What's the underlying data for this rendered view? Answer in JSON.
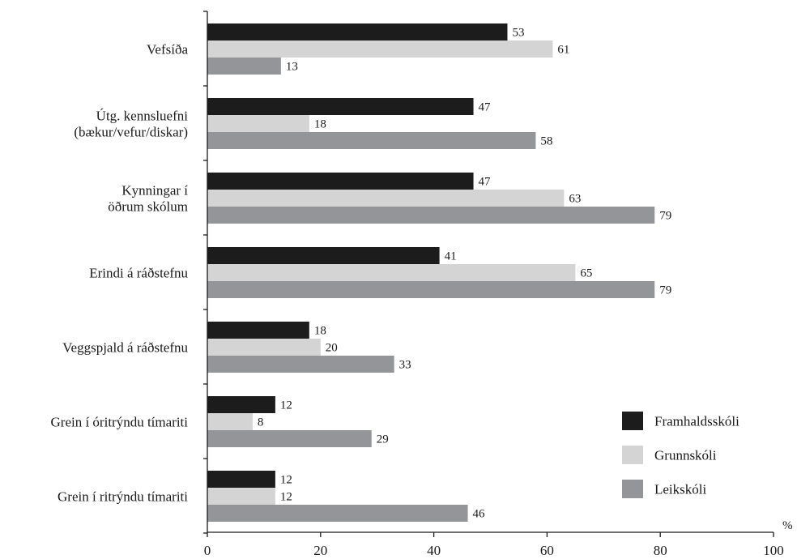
{
  "chart_data": {
    "type": "bar",
    "orientation": "horizontal",
    "categories": [
      [
        "Vefsíða"
      ],
      [
        "Útg. kennsluefni",
        "(bækur/vefur/diskar)"
      ],
      [
        "Kynningar í",
        "öðrum skólum"
      ],
      [
        "Erindi á ráðstefnu"
      ],
      [
        "Veggspjald á ráðstefnu"
      ],
      [
        "Grein í óritrýndu tímariti"
      ],
      [
        "Grein í ritrýndu tímariti"
      ]
    ],
    "series": [
      {
        "name": "Framhaldsskóli",
        "color": "#1c1c1c",
        "values": [
          53,
          47,
          47,
          41,
          18,
          12,
          12
        ]
      },
      {
        "name": "Grunnskóli",
        "color": "#d4d4d4",
        "values": [
          61,
          18,
          63,
          65,
          20,
          8,
          12
        ]
      },
      {
        "name": "Leikskóli",
        "color": "#939598",
        "values": [
          13,
          58,
          79,
          79,
          33,
          29,
          46
        ]
      }
    ],
    "xlim": [
      0,
      100
    ],
    "xticks": [
      "0",
      "20",
      "40",
      "60",
      "80",
      "100"
    ],
    "unit": "%",
    "legend_position": "bottom-right",
    "grid": false
  }
}
